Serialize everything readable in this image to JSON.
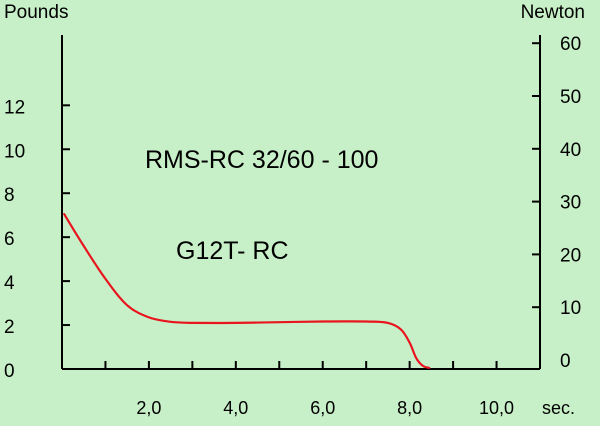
{
  "chart_data": {
    "type": "line",
    "left_axis": {
      "label": "Pounds",
      "ticks": [
        0,
        2,
        4,
        6,
        8,
        10,
        12
      ],
      "tick_labels": [
        "0",
        "2",
        "4",
        "6",
        "8",
        "10",
        "12"
      ],
      "range": [
        0,
        15.2
      ]
    },
    "right_axis": {
      "label": "Newton",
      "ticks": [
        0,
        10,
        20,
        30,
        40,
        50,
        60
      ],
      "tick_labels": [
        "0",
        "10",
        "20",
        "30",
        "40",
        "50",
        "60"
      ]
    },
    "x_axis": {
      "range": [
        0,
        11
      ],
      "ticks": [
        1,
        2,
        3,
        4,
        5,
        6,
        7,
        8,
        9,
        10,
        11
      ],
      "labeled_ticks": [
        2,
        4,
        6,
        8,
        10
      ],
      "tick_labels": [
        "2,0",
        "4,0",
        "6,0",
        "8,0",
        "10,0"
      ],
      "unit": "sec."
    },
    "annotations": [
      "RMS-RC 32/60 - 100",
      "G12T- RC"
    ],
    "grid": false,
    "series": [
      {
        "color": "#E8141E",
        "x": [
          0.05,
          0.5,
          1.0,
          1.5,
          2.0,
          2.5,
          3.0,
          4.0,
          5.0,
          6.0,
          7.0,
          7.5,
          7.8,
          8.0,
          8.15,
          8.3,
          8.45
        ],
        "y": [
          7.05,
          5.6,
          4.1,
          2.9,
          2.35,
          2.15,
          2.1,
          2.1,
          2.13,
          2.16,
          2.16,
          2.1,
          1.8,
          1.2,
          0.5,
          0.15,
          0.05
        ]
      }
    ]
  },
  "colors": {
    "background": "#C8F0C8",
    "axis": "#000000",
    "curve": "#E8141E"
  }
}
